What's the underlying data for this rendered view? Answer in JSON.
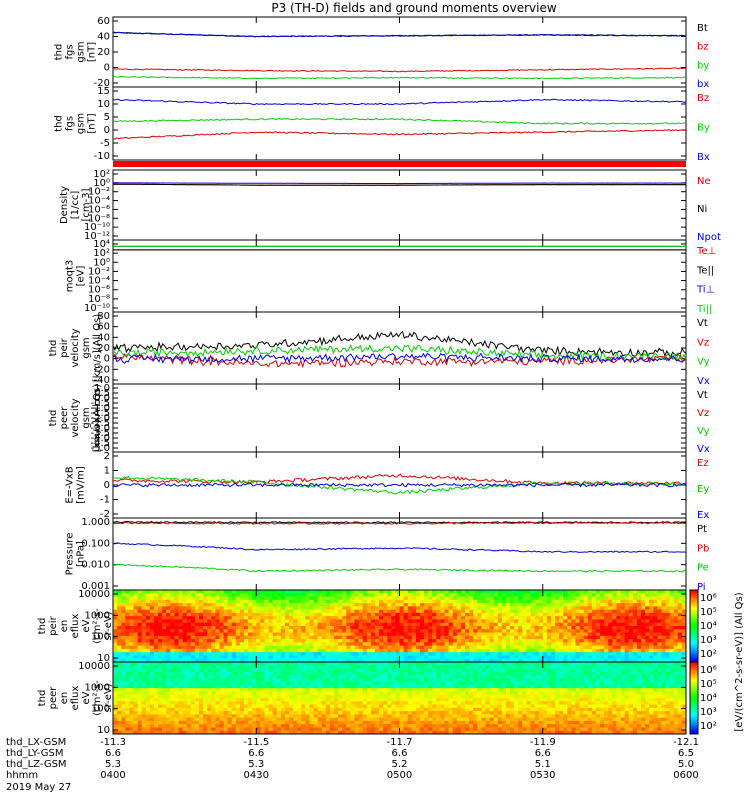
{
  "title": "P3 (TH-D) fields and ground moments overview",
  "date": "2019 May 27",
  "footer": {
    "rows": [
      {
        "label": "thd_LX-GSM",
        "values": [
          "-11.3",
          "-11.5",
          "-11.7",
          "-11.9",
          "-12.1"
        ]
      },
      {
        "label": "thd_LY-GSM",
        "values": [
          "6.6",
          "6.6",
          "6.6",
          "6.6",
          "6.5"
        ]
      },
      {
        "label": "thd_LZ-GSM",
        "values": [
          "5.3",
          "5.3",
          "5.2",
          "5.1",
          "5.0"
        ]
      },
      {
        "label": "hhmm",
        "values": [
          "0400",
          "0430",
          "0500",
          "0530",
          "0600"
        ]
      }
    ]
  },
  "colors": {
    "black": "#000000",
    "red": "#e00000",
    "green": "#00d000",
    "blue": "#0000e0"
  },
  "colorbar": {
    "label": "[eV/(cm^2-s-sr-eV)] (All Qs)",
    "ticks_top": [
      "10⁶",
      "10⁵",
      "10⁴",
      "10³",
      "10²"
    ],
    "ticks_bottom": [
      "10⁶",
      "10⁵",
      "10⁴",
      "10³",
      "10²"
    ]
  },
  "chart_data": [
    {
      "id": "p1",
      "type": "line",
      "ylabel": [
        "thd",
        "fgs",
        "gsm",
        "[nT]"
      ],
      "ylim": [
        -20,
        60
      ],
      "yticks": [
        "60",
        "40",
        "20",
        "0",
        "-20"
      ],
      "x": [
        "0400",
        "0430",
        "0500",
        "0530",
        "0600"
      ],
      "series": [
        {
          "name": "Bt",
          "color": "black",
          "approx_values": [
            45,
            40,
            41,
            42,
            41
          ]
        },
        {
          "name": "bz",
          "color": "red",
          "approx_values": [
            -2,
            -4,
            -5,
            -3,
            -1
          ]
        },
        {
          "name": "by",
          "color": "green",
          "approx_values": [
            -12,
            -14,
            -13,
            -14,
            -13
          ]
        },
        {
          "name": "bx",
          "color": "blue",
          "approx_values": [
            45,
            40,
            41,
            42,
            41
          ]
        }
      ]
    },
    {
      "id": "p2",
      "type": "line",
      "ylabel": [
        "thd",
        "fgs",
        "gsm",
        "[nT]"
      ],
      "ylim": [
        -14,
        16
      ],
      "yticks": [
        "15",
        "10",
        "5",
        "0",
        "-5",
        "-10"
      ],
      "series": [
        {
          "name": "Bz",
          "color": "red",
          "approx_values": [
            -6,
            -3,
            -4,
            -3,
            -2
          ]
        },
        {
          "name": "By",
          "color": "green",
          "approx_values": [
            2,
            3,
            3,
            1,
            1
          ]
        },
        {
          "name": "Bx",
          "color": "blue",
          "approx_values": [
            12,
            10,
            10,
            12,
            11
          ]
        }
      ]
    },
    {
      "id": "p3",
      "type": "line",
      "ylabel": [
        "Density",
        "[1/cc]",
        "[cm-3]"
      ],
      "scale": "log",
      "yticks": [
        "10²",
        "10⁰",
        "10⁻²",
        "10⁻⁴",
        "10⁻⁶",
        "10⁻⁸",
        "10⁻¹⁰",
        "10⁻¹²"
      ],
      "series": [
        {
          "name": "Ne",
          "color": "red",
          "approx_values": [
            0.5,
            0.3,
            0.3,
            0.4,
            0.4
          ]
        },
        {
          "name": "Ni",
          "color": "black",
          "approx_values": [
            0.5,
            0.3,
            0.3,
            0.4,
            0.4
          ]
        },
        {
          "name": "Npot",
          "color": "blue",
          "approx_values": [
            1.0,
            0.8,
            0.7,
            0.9,
            0.9
          ]
        }
      ]
    },
    {
      "id": "p4",
      "type": "line",
      "ylabel": [
        "moqt3",
        "[eV]"
      ],
      "scale": "log",
      "yticks": [
        "10⁴",
        "10²",
        "10⁰",
        "10⁻²",
        "10⁻⁴",
        "10⁻⁶",
        "10⁻⁸",
        "10⁻¹⁰"
      ],
      "series": [
        {
          "name": "Te⊥",
          "color": "red",
          "approx_values": [
            500,
            500,
            500,
            500,
            500
          ]
        },
        {
          "name": "Te||",
          "color": "black",
          "approx_values": [
            500,
            500,
            500,
            500,
            500
          ]
        },
        {
          "name": "Ti⊥",
          "color": "blue",
          "approx_values": [
            3000,
            3000,
            3000,
            3000,
            3000
          ]
        },
        {
          "name": "Ti||",
          "color": "green",
          "approx_values": [
            3000,
            3000,
            3000,
            3000,
            3000
          ]
        }
      ]
    },
    {
      "id": "p5",
      "type": "line",
      "ylabel": [
        "thd",
        "peir",
        "velocity",
        "gsm",
        "[km/s](All Qs)"
      ],
      "ylim": [
        -40,
        80
      ],
      "yticks": [
        "80",
        "60",
        "40",
        "20",
        "0",
        "-20",
        "-40"
      ],
      "series": [
        {
          "name": "Vt",
          "color": "black",
          "approx_values": [
            20,
            25,
            45,
            15,
            10
          ]
        },
        {
          "name": "Vz",
          "color": "red",
          "approx_values": [
            5,
            -10,
            -5,
            -5,
            0
          ]
        },
        {
          "name": "Vy",
          "color": "green",
          "approx_values": [
            10,
            15,
            20,
            5,
            5
          ]
        },
        {
          "name": "Vx",
          "color": "blue",
          "approx_values": [
            0,
            0,
            5,
            0,
            0
          ]
        }
      ]
    },
    {
      "id": "p6",
      "type": "line",
      "ylabel": [
        "thd",
        "peer",
        "velocity",
        "gsm",
        "[km/s](All Qs)"
      ],
      "ylim": [
        -5,
        1
      ],
      "yticks": [
        "1.0",
        "0.5",
        "0.0",
        "-0.5",
        "-1.0",
        "-1.5",
        "-2.0",
        "-2.5",
        "-3.0",
        "-3.5",
        "-4.0",
        "-4.5",
        "-5.0"
      ],
      "series": [
        {
          "name": "Vt",
          "color": "black",
          "approx_values": []
        },
        {
          "name": "Vz",
          "color": "red",
          "approx_values": []
        },
        {
          "name": "Vy",
          "color": "green",
          "approx_values": []
        },
        {
          "name": "Vx",
          "color": "blue",
          "approx_values": []
        }
      ]
    },
    {
      "id": "p7",
      "type": "line",
      "ylabel": [
        "E=-VxB",
        "[mV/m]"
      ],
      "ylim": [
        -3,
        3
      ],
      "yticks": [
        "2",
        "1",
        "0",
        "-1",
        "-2"
      ],
      "series": [
        {
          "name": "Ez",
          "color": "red",
          "approx_values": [
            0.5,
            0.3,
            1.0,
            0.2,
            0.2
          ]
        },
        {
          "name": "Ey",
          "color": "green",
          "approx_values": [
            0.8,
            0.3,
            -0.8,
            0.2,
            0.1
          ]
        },
        {
          "name": "Ex",
          "color": "blue",
          "approx_values": [
            0,
            0,
            0,
            0,
            0
          ]
        }
      ]
    },
    {
      "id": "p8",
      "type": "line",
      "ylabel": [
        "Pressure",
        "[nPa]"
      ],
      "scale": "log",
      "yticks": [
        "1.000",
        "0.100",
        "0.010",
        "0.001"
      ],
      "series": [
        {
          "name": "Pt",
          "color": "black",
          "approx_values": [
            1.0,
            0.95,
            0.95,
            0.95,
            0.95
          ]
        },
        {
          "name": "Pb",
          "color": "red",
          "approx_values": [
            0.9,
            0.85,
            0.85,
            0.9,
            0.9
          ]
        },
        {
          "name": "Pe",
          "color": "green",
          "approx_values": [
            0.01,
            0.005,
            0.006,
            0.005,
            0.005
          ]
        },
        {
          "name": "Pi",
          "color": "blue",
          "approx_values": [
            0.1,
            0.05,
            0.06,
            0.04,
            0.04
          ]
        }
      ]
    },
    {
      "id": "p9",
      "type": "heatmap",
      "ylabel": [
        "thd",
        "peir",
        "en",
        "eflux",
        "eV",
        "(cm²-s-",
        "sr-eV)"
      ],
      "scale": "log",
      "yticks": [
        "10000",
        "1000",
        "100",
        "10"
      ]
    },
    {
      "id": "p10",
      "type": "heatmap",
      "ylabel": [
        "thd",
        "peer",
        "en",
        "eflux",
        "eV",
        "(cm²-s-",
        "sr-eV)"
      ],
      "scale": "log",
      "yticks": [
        "10000",
        "1000",
        "100",
        "10"
      ]
    }
  ]
}
